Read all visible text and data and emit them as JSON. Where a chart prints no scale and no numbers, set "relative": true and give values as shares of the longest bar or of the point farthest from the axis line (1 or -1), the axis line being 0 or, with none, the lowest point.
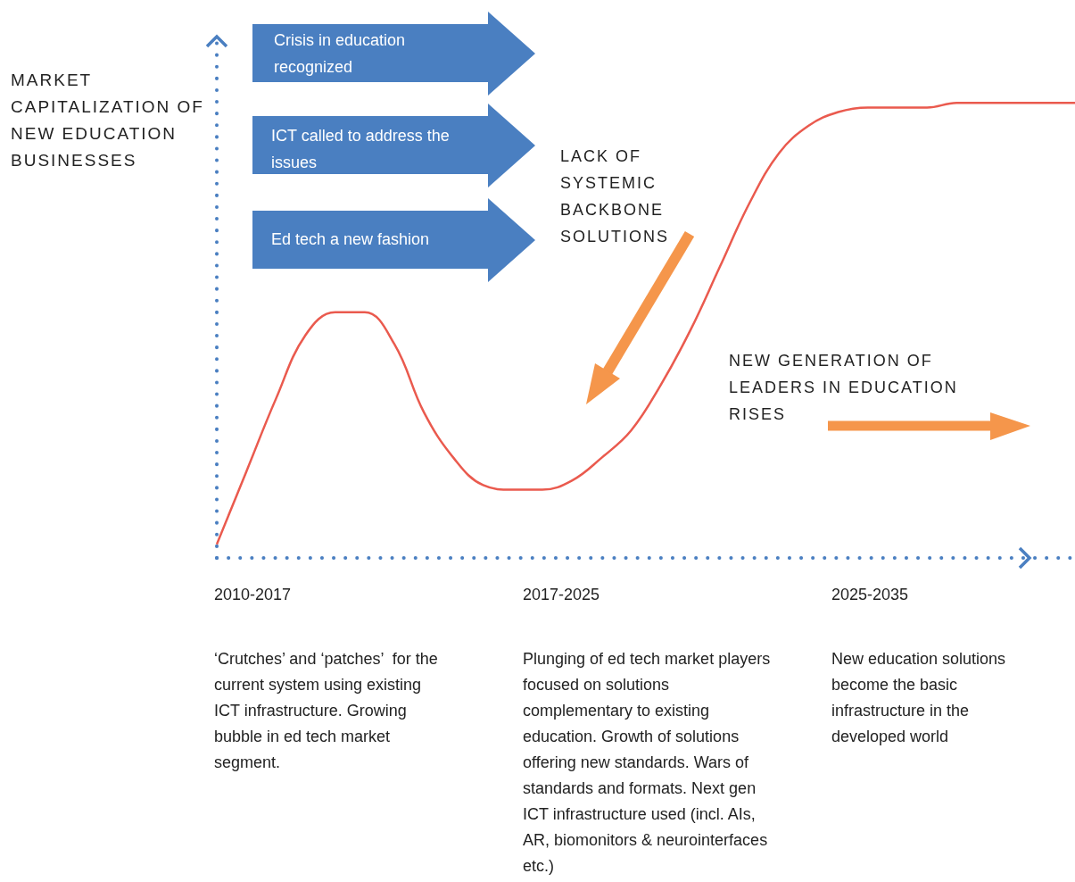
{
  "chart_data": {
    "type": "line",
    "relative": true,
    "ylabel": "MARKET CAPITALIZATION OF NEW EDUCATION BUSINESSES",
    "categories": [
      null,
      null,
      null,
      null,
      null,
      null,
      null,
      null,
      null,
      null,
      null,
      null,
      null,
      null,
      null,
      null,
      null,
      null,
      null,
      null,
      null,
      null,
      null,
      null,
      null,
      null,
      null,
      null,
      null,
      null
    ],
    "series": [
      {
        "color": "#ea5a4e",
        "values": [
          0.03,
          0.19,
          0.35,
          0.49,
          0.54,
          0.54,
          0.47,
          0.32,
          0.22,
          0.16,
          0.15,
          0.15,
          0.17,
          0.22,
          0.28,
          0.38,
          0.5,
          0.64,
          0.78,
          0.89,
          0.95,
          0.98,
          0.99,
          0.99,
          0.99,
          1,
          1,
          1,
          1,
          1
        ]
      }
    ],
    "annotations": [
      "Crisis in education recognized",
      "ICT called to address the issues",
      "Ed tech a new fashion",
      "LACK OF SYSTEMIC BACKBONE SOLUTIONS",
      "NEW GENERATION OF LEADERS IN EDUCATION RISES",
      "2010-2017",
      "2017-2025",
      "2025-2035",
      "‘Crutches’ and ‘patches’  for the current system using existing ICT infrastructure. Growing bubble in ed tech market segment.",
      "Plunging of ed tech market players focused on solutions complementary to existing education. Growth of solutions offering new standards. Wars of standards and formats. Next gen ICT infrastructure used (incl. AIs, AR, biomonitors & neurointerfaces etc.)",
      "New education solutions become the basic infrastructure in the developed world"
    ]
  }
}
